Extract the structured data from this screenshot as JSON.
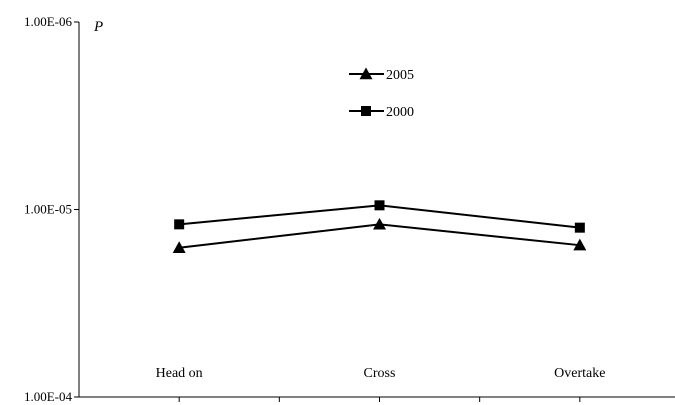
{
  "chart_data": {
    "type": "line",
    "title": "",
    "xlabel": "",
    "ylabel": "P",
    "y_scale": "log",
    "y_axis_reversed": true,
    "ylim": [
      1e-06,
      0.0001
    ],
    "y_tick_labels": [
      "1.00E-06",
      "1.00E-05",
      "1.00E-04"
    ],
    "categories": [
      "Head on",
      "Cross",
      "Overtake"
    ],
    "series": [
      {
        "name": "2005",
        "marker": "triangle",
        "values": [
          1.6e-05,
          1.2e-05,
          1.55e-05
        ]
      },
      {
        "name": "2000",
        "marker": "square",
        "values": [
          1.2e-05,
          9.5e-06,
          1.25e-05
        ]
      }
    ],
    "legend_position": "top-center",
    "grid": false,
    "colors": {
      "series": "#000000",
      "background": "#ffffff"
    }
  }
}
